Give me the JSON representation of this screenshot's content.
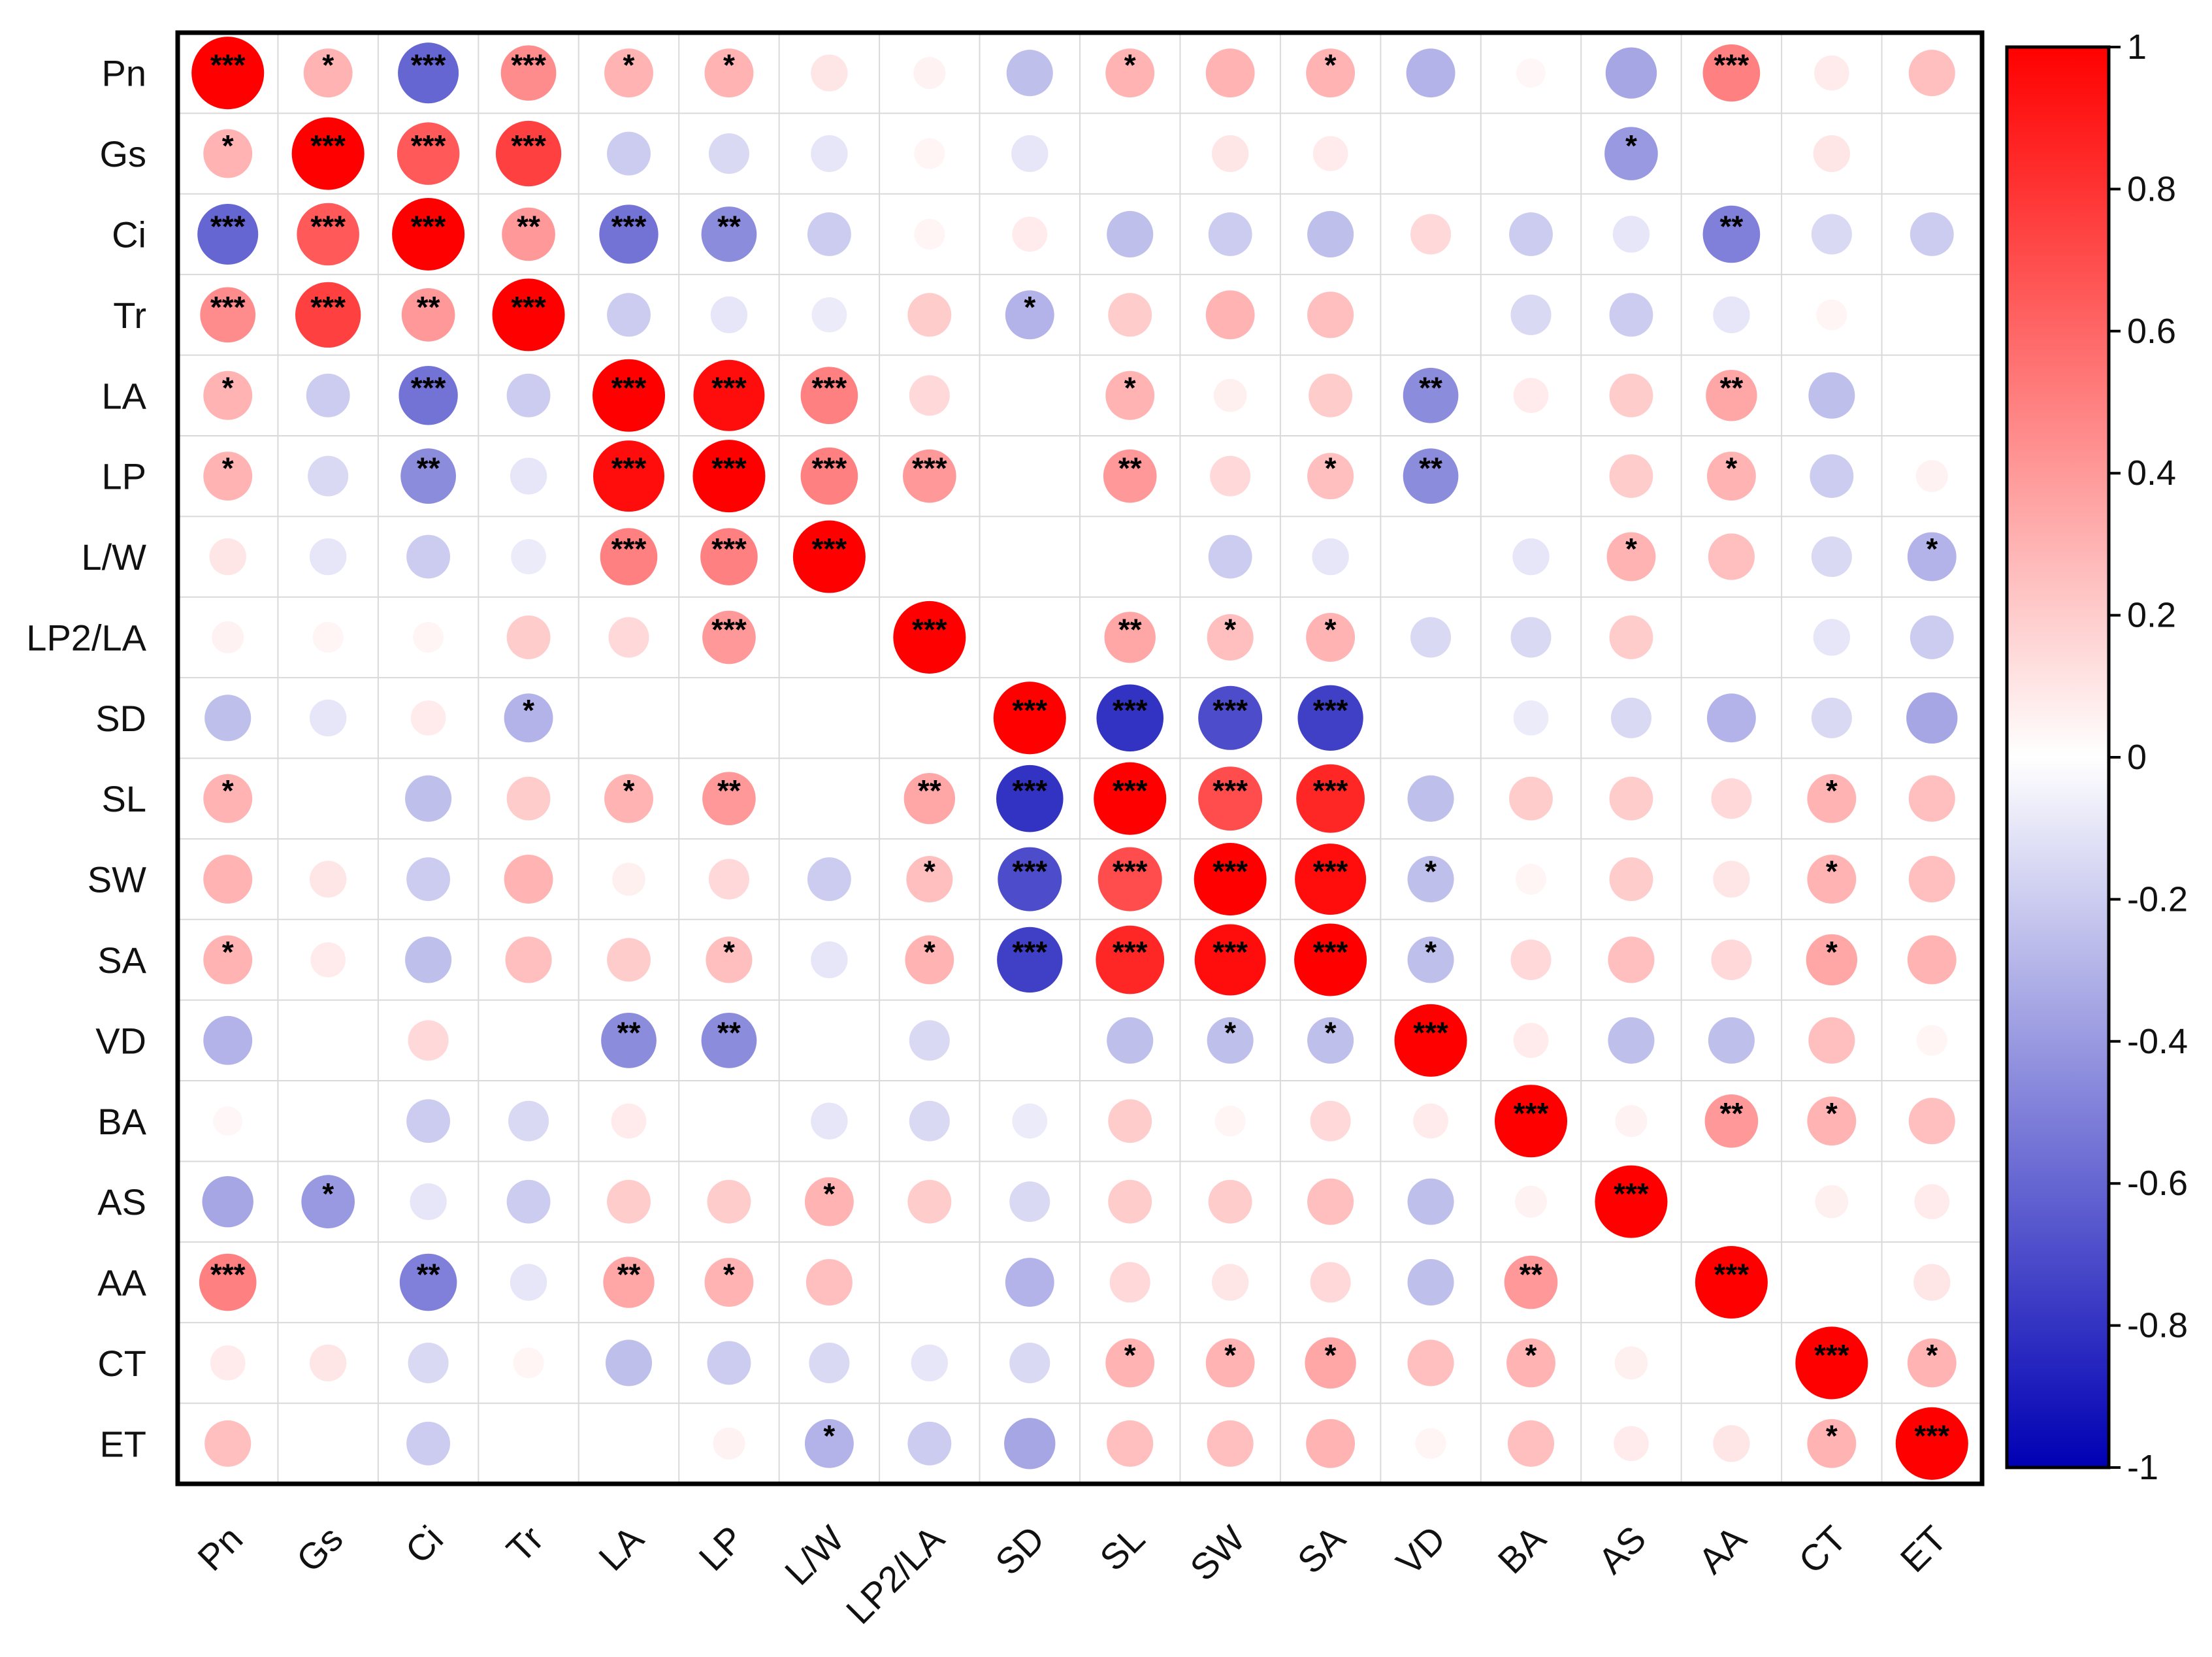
{
  "chart_data": {
    "type": "heatmap",
    "title": "",
    "xlabel": "",
    "ylabel": "",
    "variables": [
      "Pn",
      "Gs",
      "Ci",
      "Tr",
      "LA",
      "LP",
      "L/W",
      "LP2/LA",
      "SD",
      "SL",
      "SW",
      "SA",
      "VD",
      "BA",
      "AS",
      "AA",
      "CT",
      "ET"
    ],
    "colorbar": {
      "range": [
        -1,
        1
      ],
      "ticks": [
        "1",
        "0.8",
        "0.6",
        "0.4",
        "0.2",
        "0",
        "-0.2",
        "-0.4",
        "-0.6",
        "-0.8",
        "-1"
      ],
      "colors": {
        "negative": "#0000b4",
        "zero": "#ffffff",
        "positive": "#ff0000"
      }
    },
    "grid": true,
    "legend": "right",
    "matrix": [
      [
        1,
        0.3,
        -0.6,
        0.45,
        0.3,
        0.3,
        0.1,
        0.05,
        -0.25,
        0.3,
        0.3,
        0.3,
        -0.3,
        0.03,
        -0.35,
        0.5,
        0.08,
        0.25
      ],
      [
        0.3,
        1,
        0.65,
        0.75,
        -0.2,
        -0.15,
        -0.1,
        0.04,
        -0.1,
        0,
        0.1,
        0.08,
        0,
        0,
        -0.4,
        0,
        0.1,
        0
      ],
      [
        -0.6,
        0.65,
        1,
        0.4,
        -0.55,
        -0.45,
        -0.2,
        0.04,
        0.08,
        -0.25,
        -0.2,
        -0.25,
        0.15,
        -0.2,
        -0.1,
        -0.5,
        -0.15,
        -0.2
      ],
      [
        0.45,
        0.75,
        0.4,
        1,
        -0.2,
        -0.1,
        -0.08,
        0.2,
        -0.3,
        0.2,
        0.3,
        0.25,
        0,
        -0.15,
        -0.2,
        -0.1,
        0.04,
        0
      ],
      [
        0.3,
        -0.2,
        -0.55,
        -0.2,
        1,
        0.95,
        0.5,
        0.15,
        0,
        0.3,
        0.06,
        0.2,
        -0.45,
        0.08,
        0.2,
        0.35,
        -0.25,
        0
      ],
      [
        0.3,
        -0.15,
        -0.45,
        -0.1,
        0.95,
        1,
        0.5,
        0.4,
        0,
        0.4,
        0.15,
        0.25,
        -0.45,
        0,
        0.2,
        0.3,
        -0.2,
        0.05
      ],
      [
        0.1,
        -0.1,
        -0.2,
        -0.08,
        0.5,
        0.5,
        1,
        0,
        0,
        0,
        -0.2,
        -0.1,
        0,
        -0.1,
        0.3,
        0.25,
        -0.15,
        -0.3
      ],
      [
        0.05,
        0.04,
        0.04,
        0.2,
        0.15,
        0.4,
        0,
        1,
        0,
        0.35,
        0.25,
        0.3,
        -0.15,
        -0.15,
        0.2,
        0,
        -0.1,
        -0.2
      ],
      [
        -0.25,
        -0.1,
        0.08,
        -0.3,
        0,
        0,
        0,
        0,
        1,
        -0.8,
        -0.7,
        -0.75,
        0,
        -0.08,
        -0.15,
        -0.3,
        -0.15,
        -0.35
      ],
      [
        0.3,
        0,
        -0.25,
        0.2,
        0.3,
        0.4,
        0,
        0.35,
        -0.8,
        1,
        0.7,
        0.85,
        -0.25,
        0.2,
        0.2,
        0.15,
        0.3,
        0.25
      ],
      [
        0.3,
        0.1,
        -0.2,
        0.3,
        0.06,
        0.15,
        -0.2,
        0.25,
        -0.7,
        0.7,
        1,
        0.95,
        -0.25,
        0.04,
        0.2,
        0.1,
        0.3,
        0.25
      ],
      [
        0.3,
        0.08,
        -0.25,
        0.25,
        0.2,
        0.25,
        -0.1,
        0.3,
        -0.75,
        0.85,
        0.95,
        1,
        -0.25,
        0.15,
        0.25,
        0.15,
        0.35,
        0.3
      ],
      [
        -0.3,
        0,
        0.15,
        0,
        -0.45,
        -0.45,
        0,
        -0.15,
        0,
        -0.25,
        -0.25,
        -0.25,
        1,
        0.08,
        -0.25,
        -0.25,
        0.25,
        0.04
      ],
      [
        0.03,
        0,
        -0.2,
        -0.15,
        0.08,
        0,
        -0.1,
        -0.15,
        -0.08,
        0.2,
        0.04,
        0.15,
        0.08,
        1,
        0.05,
        0.4,
        0.3,
        0.25
      ],
      [
        -0.35,
        -0.4,
        -0.1,
        -0.2,
        0.2,
        0.2,
        0.3,
        0.2,
        -0.15,
        0.2,
        0.2,
        0.25,
        -0.25,
        0.05,
        1,
        0,
        0.06,
        0.08
      ],
      [
        0.5,
        0,
        -0.5,
        -0.1,
        0.35,
        0.3,
        0.25,
        0,
        -0.3,
        0.15,
        0.1,
        0.15,
        -0.25,
        0.4,
        0,
        1,
        0,
        0.1
      ],
      [
        0.08,
        0.1,
        -0.15,
        0.04,
        -0.25,
        -0.2,
        -0.15,
        -0.1,
        -0.15,
        0.3,
        0.3,
        0.35,
        0.25,
        0.3,
        0.06,
        0,
        1,
        0.3
      ],
      [
        0.25,
        0,
        -0.2,
        0,
        0,
        0.05,
        -0.3,
        -0.2,
        -0.35,
        0.25,
        0.25,
        0.3,
        0.04,
        0.25,
        0.08,
        0.1,
        0.3,
        1
      ]
    ],
    "significance": [
      [
        "***",
        "*",
        "***",
        "***",
        "*",
        "*",
        "",
        "",
        "",
        "*",
        "",
        "*",
        "",
        "",
        "",
        "***",
        "",
        ""
      ],
      [
        "*",
        "***",
        "***",
        "***",
        "",
        "",
        "",
        "",
        "",
        "",
        "",
        "",
        "",
        "",
        "*",
        "",
        "",
        ""
      ],
      [
        "***",
        "***",
        "***",
        "**",
        "***",
        "**",
        "",
        "",
        "",
        "",
        "",
        "",
        "",
        "",
        "",
        "**",
        "",
        ""
      ],
      [
        "***",
        "***",
        "**",
        "***",
        "",
        "",
        "",
        "",
        "*",
        "",
        "",
        "",
        "",
        "",
        "",
        "",
        "",
        ""
      ],
      [
        "*",
        "",
        "***",
        "",
        "***",
        "***",
        "***",
        "",
        "",
        "*",
        "",
        "",
        "**",
        "",
        "",
        "**",
        "",
        ""
      ],
      [
        "*",
        "",
        "**",
        "",
        "***",
        "***",
        "***",
        "***",
        "",
        "**",
        "",
        "*",
        "**",
        "",
        "",
        "*",
        "",
        ""
      ],
      [
        "",
        "",
        "",
        "",
        "***",
        "***",
        "***",
        "",
        "",
        "",
        "",
        "",
        "",
        "",
        "*",
        "",
        "",
        "*"
      ],
      [
        "",
        "",
        "",
        "",
        "",
        "***",
        "",
        "***",
        "",
        "**",
        "*",
        "*",
        "",
        "",
        "",
        "",
        "",
        ""
      ],
      [
        "",
        "",
        "",
        "*",
        "",
        "",
        "",
        "",
        "***",
        "***",
        "***",
        "***",
        "",
        "",
        "",
        "",
        "",
        ""
      ],
      [
        "*",
        "",
        "",
        "",
        "*",
        "**",
        "",
        "**",
        "***",
        "***",
        "***",
        "***",
        "",
        "",
        "",
        "",
        "*",
        ""
      ],
      [
        "",
        "",
        "",
        "",
        "",
        "",
        "",
        "*",
        "***",
        "***",
        "***",
        "***",
        "*",
        "",
        "",
        "",
        "*",
        ""
      ],
      [
        "*",
        "",
        "",
        "",
        "",
        "*",
        "",
        "*",
        "***",
        "***",
        "***",
        "***",
        "*",
        "",
        "",
        "",
        "*",
        ""
      ],
      [
        "",
        "",
        "",
        "",
        "**",
        "**",
        "",
        "",
        "",
        "",
        "*",
        "*",
        "***",
        "",
        "",
        "",
        "",
        ""
      ],
      [
        "",
        "",
        "",
        "",
        "",
        "",
        "",
        "",
        "",
        "",
        "",
        "",
        "",
        "***",
        "",
        "**",
        "*",
        ""
      ],
      [
        "",
        "*",
        "",
        "",
        "",
        "",
        "*",
        "",
        "",
        "",
        "",
        "",
        "",
        "",
        "***",
        "",
        "",
        ""
      ],
      [
        "***",
        "",
        "**",
        "",
        "**",
        "*",
        "",
        "",
        "",
        "",
        "",
        "",
        "",
        "**",
        "",
        "***",
        "",
        ""
      ],
      [
        "",
        "",
        "",
        "",
        "",
        "",
        "",
        "",
        "",
        "*",
        "*",
        "*",
        "",
        "*",
        "",
        "",
        "***",
        "*"
      ],
      [
        "",
        "",
        "",
        "",
        "",
        "",
        "*",
        "",
        "",
        "",
        "",
        "",
        "",
        "",
        "",
        "",
        "*",
        "***"
      ]
    ]
  }
}
